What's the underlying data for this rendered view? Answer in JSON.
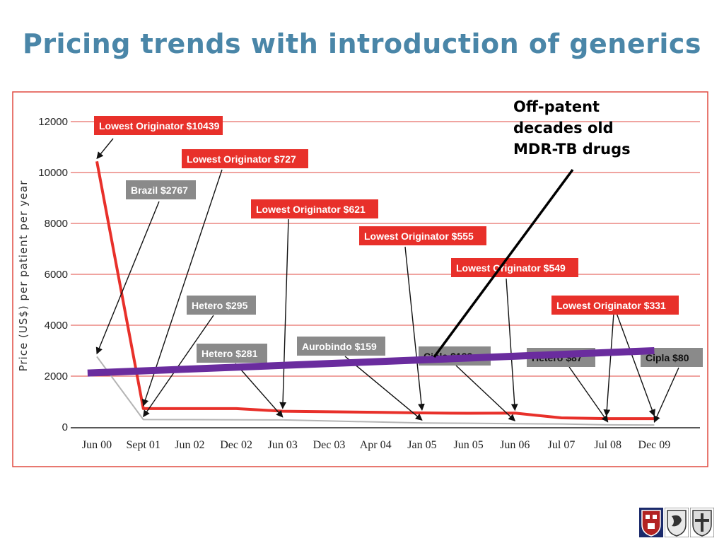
{
  "slide": {
    "title": "Pricing trends with introduction of generics",
    "annotation": "Off-patent\ndecades old\nMDR-TB drugs"
  },
  "colors": {
    "title": "#4a86a8",
    "originator_line": "#e8302a",
    "generic_line": "#b4b4b4",
    "trend_line": "#6a2c9e",
    "gridline": "#e04a40",
    "frame": "#e04a40",
    "originator_box": "#e8302a",
    "generic_box": "#8a8a8a"
  },
  "chart_data": {
    "type": "line",
    "ylabel": "Price (US$) per patient per year",
    "ylim": [
      0,
      12000
    ],
    "yticks": [
      "0",
      "2000",
      "4000",
      "6000",
      "8000",
      "10000",
      "12000"
    ],
    "yticks_values": [
      0,
      2000,
      4000,
      6000,
      8000,
      10000,
      12000
    ],
    "categories": [
      "Jun 00",
      "Sept 01",
      "Jun 02",
      "Dec 02",
      "Jun 03",
      "Dec 03",
      "Apr 04",
      "Jan 05",
      "Jun 05",
      "Jun 06",
      "Jul 07",
      "Jul 08",
      "Dec 09"
    ],
    "grid": true,
    "series": [
      {
        "role": "originator",
        "color": "#e8302a",
        "values": [
          10439,
          727,
          727,
          727,
          621,
          600,
          580,
          555,
          540,
          549,
          360,
          331,
          331
        ]
      },
      {
        "role": "generic",
        "color": "#b4b4b4",
        "values": [
          2767,
          295,
          290,
          285,
          281,
          240,
          200,
          159,
          150,
          133,
          120,
          87,
          80
        ]
      },
      {
        "role": "trend",
        "color": "#6a2c9e",
        "points": [
          [
            -0.2,
            2120
          ],
          [
            12.0,
            3000
          ]
        ]
      }
    ],
    "labels": [
      {
        "text": "Lowest Originator $10439",
        "kind": "originator",
        "target": [
          0,
          10439
        ]
      },
      {
        "text": "Lowest Originator $727",
        "kind": "originator",
        "target": [
          1,
          727
        ]
      },
      {
        "text": "Lowest Originator $621",
        "kind": "originator",
        "target": [
          4,
          621
        ]
      },
      {
        "text": "Lowest Originator $555",
        "kind": "originator",
        "target": [
          7,
          555
        ]
      },
      {
        "text": "Lowest Originator $549",
        "kind": "originator",
        "target": [
          9,
          549
        ]
      },
      {
        "text": "Lowest Originator $331",
        "kind": "originator",
        "targets": [
          [
            11,
            331
          ],
          [
            12,
            331
          ]
        ]
      },
      {
        "text": "Brazil $2767",
        "kind": "generic",
        "target": [
          0,
          2767
        ]
      },
      {
        "text": "Hetero $295",
        "kind": "generic",
        "target": [
          1,
          295
        ]
      },
      {
        "text": "Hetero $281",
        "kind": "generic",
        "target": [
          4,
          281
        ]
      },
      {
        "text": "Aurobindo $159",
        "kind": "generic",
        "target": [
          7,
          159
        ]
      },
      {
        "text": "Cipla $133",
        "kind": "generic",
        "target": [
          9,
          133
        ]
      },
      {
        "text": "Hetero $87",
        "kind": "generic",
        "target": [
          11,
          87
        ]
      },
      {
        "text": "Cipla $80",
        "kind": "generic",
        "target": [
          12,
          80
        ]
      }
    ]
  },
  "logos": [
    "shield-logo",
    "swirl-logo",
    "cross-logo"
  ]
}
